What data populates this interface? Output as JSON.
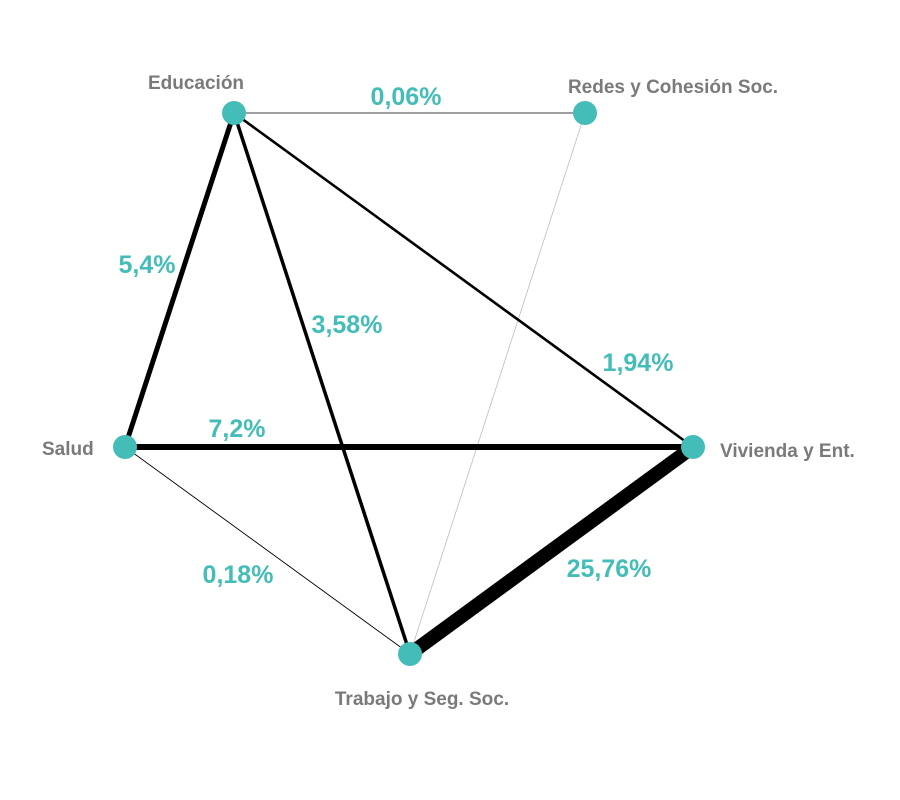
{
  "diagram": {
    "node_color": "#44bdb8",
    "label_color": "#7a7a7a",
    "edge_color": "#000000",
    "nodes": [
      {
        "id": "educacion",
        "label": "Educación"
      },
      {
        "id": "redes",
        "label": "Redes y Cohesión Soc."
      },
      {
        "id": "salud",
        "label": "Salud"
      },
      {
        "id": "vivienda",
        "label": "Vivienda y Ent."
      },
      {
        "id": "trabajo",
        "label": "Trabajo y Seg. Soc."
      }
    ],
    "edges": [
      {
        "from": "educacion",
        "to": "redes",
        "value": 0.06,
        "label": "0,06%"
      },
      {
        "from": "educacion",
        "to": "salud",
        "value": 5.4,
        "label": "5,4%"
      },
      {
        "from": "educacion",
        "to": "trabajo",
        "value": 3.58,
        "label": "3,58%"
      },
      {
        "from": "educacion",
        "to": "vivienda",
        "value": 1.94,
        "label": "1,94%"
      },
      {
        "from": "salud",
        "to": "vivienda",
        "value": 7.2,
        "label": "7,2%"
      },
      {
        "from": "salud",
        "to": "trabajo",
        "value": 0.18,
        "label": "0,18%"
      },
      {
        "from": "vivienda",
        "to": "trabajo",
        "value": 25.76,
        "label": "25,76%"
      },
      {
        "from": "redes",
        "to": "trabajo",
        "value": 0.02,
        "label": ""
      }
    ]
  }
}
